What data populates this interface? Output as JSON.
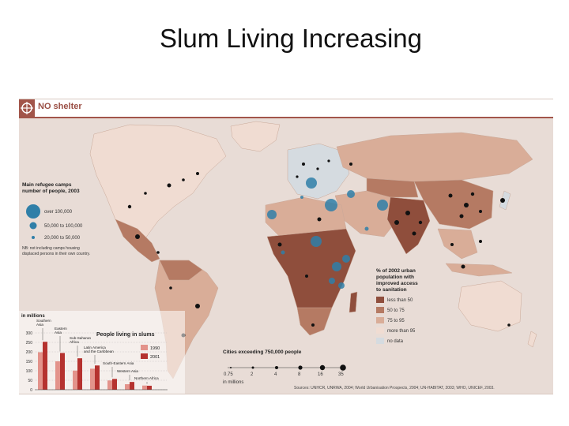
{
  "slide": {
    "title": "Slum Living Increasing"
  },
  "map": {
    "header_title": "NO shelter",
    "colors": {
      "ocean": "#e8dcd6",
      "less_than_50": "#8f4e3c",
      "50_to_75": "#b57a63",
      "75_to_95": "#d9ad98",
      "more_than_95": "#f0dcd2",
      "no_data": "#d5dbe0",
      "camp": "#2f7fa8",
      "city": "#111111",
      "accent": "#a2554a"
    },
    "refugee_legend": {
      "title_line1": "Main refugee camps",
      "title_line2": "number of people, 2003",
      "sizes": [
        {
          "label": "over 100,000"
        },
        {
          "label": "50,000 to 100,000"
        },
        {
          "label": "20,000 to 50,000"
        }
      ],
      "note_line1": "NB: not including camps housing",
      "note_line2": "displaced persons in their own country."
    },
    "sanitation_legend": {
      "title_lines": [
        "% of 2002 urban",
        "population with",
        "improved access",
        "to sanitation"
      ],
      "items": [
        {
          "label": "less than 50",
          "color": "#8f4e3c"
        },
        {
          "label": "50 to 75",
          "color": "#b57a63"
        },
        {
          "label": "75 to 95",
          "color": "#d9ad98"
        },
        {
          "label": "more than 95",
          "color": "#f0dcd2"
        },
        {
          "label": "no data",
          "color": "#d5dbe0"
        }
      ]
    },
    "cities_legend": {
      "title": "Cities exceeding 750,000 people",
      "scale_labels": [
        "0.75",
        "2",
        "4",
        "8",
        "16",
        "35"
      ],
      "unit": "in millions"
    },
    "sources": "Sources: UNHCR, UNRWA, 2004; World Urbanisation Prospects, 2004; UN-HABITAT, 2003; WHO, UNICEF, 2003."
  },
  "chart_data": {
    "type": "bar",
    "title": "People living in slums",
    "ylabel": "in millions",
    "ylim": [
      0,
      300
    ],
    "yticks": [
      0,
      50,
      100,
      150,
      200,
      250,
      300
    ],
    "categories": [
      "Southern Asia",
      "Eastern Asia",
      "Sub-Saharan Africa",
      "Latin America and the Caribbean",
      "South-Eastern Asia",
      "Western Asia",
      "Northern Africa"
    ],
    "series": [
      {
        "name": "1990",
        "color": "#e3938b",
        "values": [
          198,
          150,
          101,
          111,
          49,
          29,
          22
        ]
      },
      {
        "name": "2001",
        "color": "#b5322f",
        "values": [
          253,
          194,
          166,
          128,
          57,
          41,
          21
        ]
      }
    ]
  }
}
